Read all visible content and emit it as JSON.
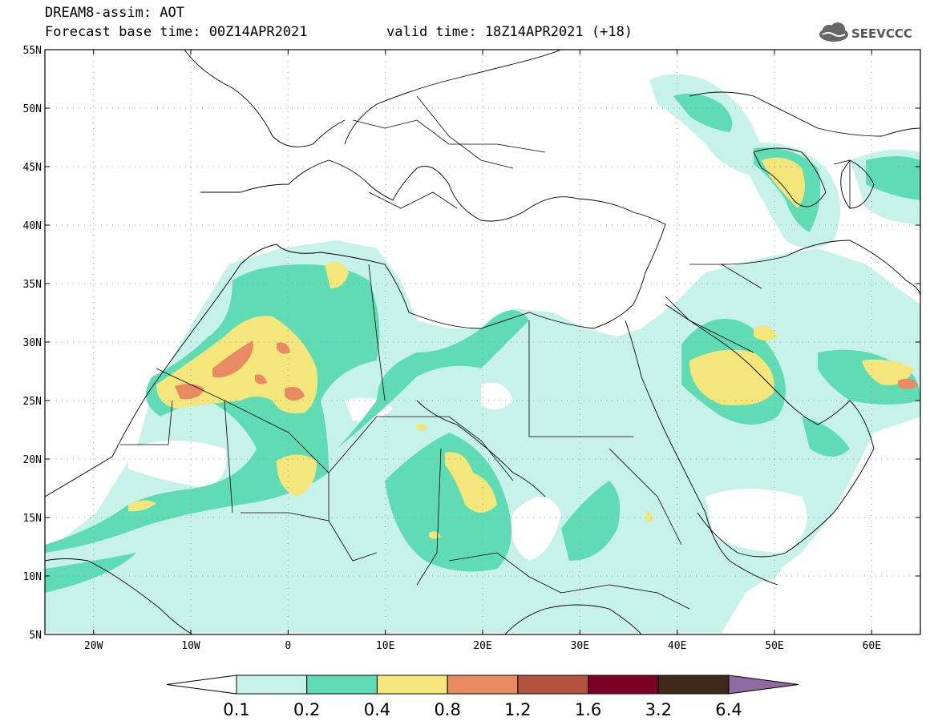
{
  "header": {
    "title": "DREAM8-assim: AOT",
    "base_time": "Forecast base time: 00Z14APR2021",
    "valid_time": "valid time: 18Z14APR2021 (+18)"
  },
  "logo": {
    "text": "SEEVCCC",
    "icon": "cloud-icon"
  },
  "map": {
    "lon_range": [
      -25,
      65
    ],
    "lat_range": [
      5,
      55
    ],
    "lat_labels": [
      "55N",
      "50N",
      "45N",
      "40N",
      "35N",
      "30N",
      "25N",
      "20N",
      "15N",
      "10N",
      "5N"
    ],
    "lat_values": [
      55,
      50,
      45,
      40,
      35,
      30,
      25,
      20,
      15,
      10,
      5
    ],
    "lon_labels": [
      "20W",
      "10W",
      "0",
      "10E",
      "20E",
      "30E",
      "40E",
      "50E",
      "60E"
    ],
    "lon_values": [
      -20,
      -10,
      0,
      10,
      20,
      30,
      40,
      50,
      60
    ],
    "grid": "dotted",
    "field": "aerosol optical thickness"
  },
  "colorbar": {
    "colors": [
      "#ffffff",
      "#c6f2ea",
      "#5fdcb4",
      "#f4e67a",
      "#e88a62",
      "#b2513e",
      "#7c0025",
      "#40281a",
      "#8f6aa3"
    ],
    "labels": [
      "0.1",
      "0.2",
      "0.4",
      "0.8",
      "1.2",
      "1.6",
      "3.2",
      "6.4"
    ]
  }
}
